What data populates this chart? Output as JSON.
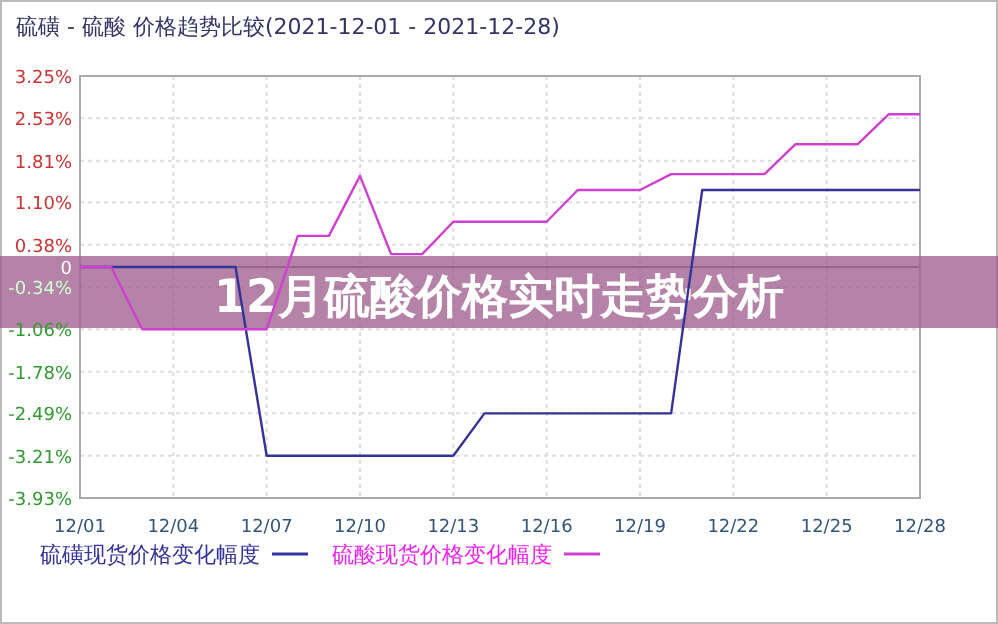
{
  "chart_data": {
    "type": "line",
    "title": "硫磺 - 硫酸 价格趋势比较(2021-12-01 - 2021-12-28)",
    "annotations": [
      "12月硫酸价格实时走势分析"
    ],
    "categories": [
      "12/01",
      null,
      null,
      "12/04",
      null,
      null,
      "12/07",
      null,
      null,
      "12/10",
      null,
      null,
      "12/13",
      null,
      null,
      "12/16",
      null,
      null,
      "12/19",
      null,
      null,
      "12/22",
      null,
      null,
      "12/25",
      null,
      null,
      "12/28"
    ],
    "series": [
      {
        "name": "硫磺现货价格变化幅度",
        "color": "#333399",
        "values": [
          0,
          0,
          0,
          0,
          0,
          0,
          -3.21,
          -3.21,
          -3.21,
          -3.21,
          -3.21,
          -3.21,
          -3.21,
          -2.49,
          -2.49,
          -2.49,
          -2.49,
          -2.49,
          -2.49,
          -2.49,
          1.31,
          1.31,
          1.31,
          1.31,
          1.31,
          1.31,
          1.31,
          1.31
        ]
      },
      {
        "name": "硫酸现货价格变化幅度",
        "color": "#d040d0",
        "values": [
          0,
          0,
          -1.06,
          -1.06,
          -1.06,
          -1.06,
          -1.06,
          0.53,
          0.53,
          1.55,
          0.22,
          0.22,
          0.77,
          0.77,
          0.77,
          0.77,
          1.31,
          1.31,
          1.31,
          1.58,
          1.58,
          1.58,
          1.58,
          2.09,
          2.09,
          2.09,
          2.6,
          2.6
        ]
      }
    ],
    "ylim": [
      -3.93,
      3.25
    ],
    "yticks": [
      {
        "value": 3.25,
        "label": "3.25%"
      },
      {
        "value": 2.53,
        "label": "2.53%"
      },
      {
        "value": 1.81,
        "label": "1.81%"
      },
      {
        "value": 1.1,
        "label": "1.10%"
      },
      {
        "value": 0.38,
        "label": "0.38%"
      },
      0,
      {
        "value": -0.34,
        "label": "-0.34%"
      },
      {
        "value": -1.06,
        "label": "-1.06%"
      },
      {
        "value": -1.78,
        "label": "-1.78%"
      },
      {
        "value": -2.49,
        "label": "-2.49%"
      },
      {
        "value": -3.21,
        "label": "-3.21%"
      },
      {
        "value": -3.93,
        "label": "-3.93%"
      }
    ],
    "grid": true,
    "legend": "bottom",
    "marker": "none",
    "line_style": "solid"
  }
}
